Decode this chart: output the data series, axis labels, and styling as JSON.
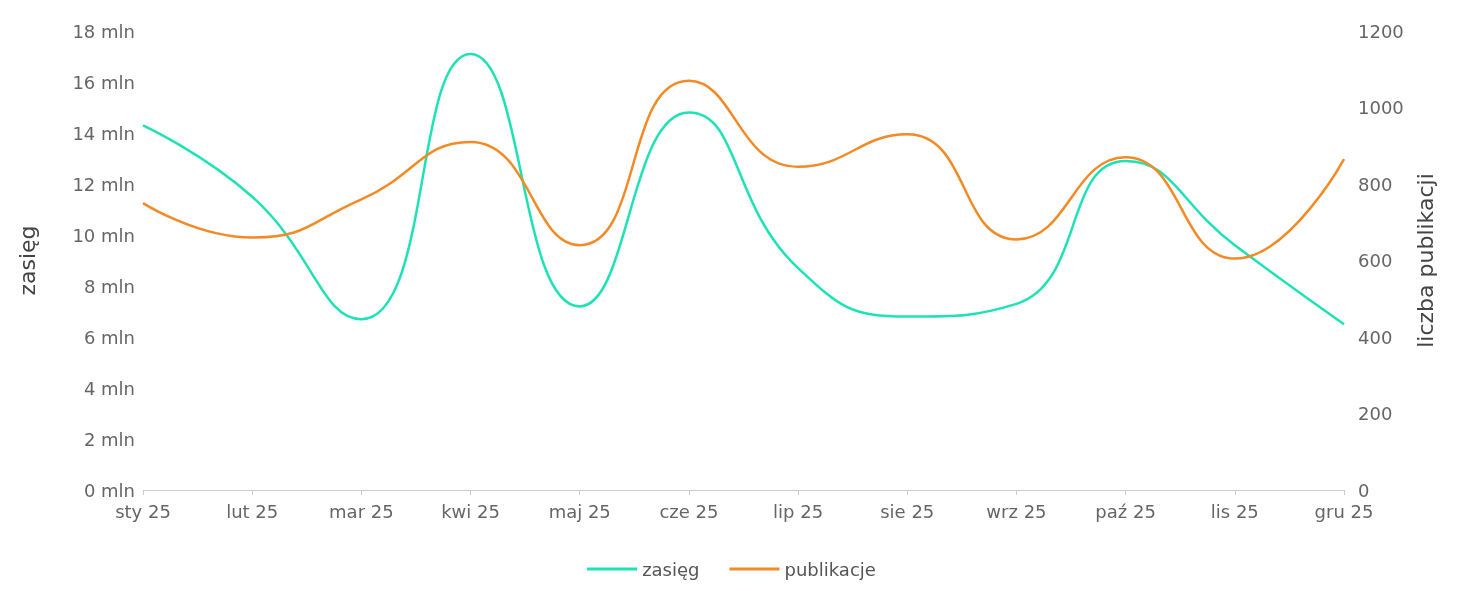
{
  "chart_data": {
    "type": "line",
    "xlabel": null,
    "ylabel": "zasięg",
    "y2label": "liczba publikacji",
    "categories": [
      "sty 25",
      "lut 25",
      "mar 25",
      "kwi 25",
      "maj 25",
      "cze 25",
      "lip 25",
      "sie 25",
      "wrz 25",
      "paź 25",
      "lis 25",
      "gru 25"
    ],
    "series": [
      {
        "name": "zasięg",
        "color": "#1de2b4",
        "values": [
          14.3,
          11.5,
          6.7,
          17.1,
          7.2,
          14.8,
          8.7,
          6.8,
          7.3,
          12.9,
          9.6,
          6.5
        ]
      },
      {
        "name": "publikacje",
        "color": "#f28a26",
        "axis": "y2",
        "values": [
          750,
          660,
          760,
          910,
          640,
          1070,
          845,
          930,
          655,
          870,
          605,
          865
        ]
      }
    ],
    "ylim": [
      0,
      18
    ],
    "yticks": [
      {
        "value": 0,
        "label": "0 mln"
      },
      {
        "value": 2,
        "label": "2 mln"
      },
      {
        "value": 4,
        "label": "4 mln"
      },
      {
        "value": 6,
        "label": "6 mln"
      },
      {
        "value": 8,
        "label": "8 mln"
      },
      {
        "value": 10,
        "label": "10 mln"
      },
      {
        "value": 12,
        "label": "12 mln"
      },
      {
        "value": 14,
        "label": "14 mln"
      },
      {
        "value": 16,
        "label": "16 mln"
      },
      {
        "value": 18,
        "label": "18 mln"
      }
    ],
    "y2lim": [
      0,
      1200
    ],
    "y2ticks": [
      0,
      200,
      400,
      600,
      800,
      1000,
      1200
    ],
    "grid": false,
    "legend": "bottom",
    "marker": "none",
    "line_style": "solid"
  }
}
